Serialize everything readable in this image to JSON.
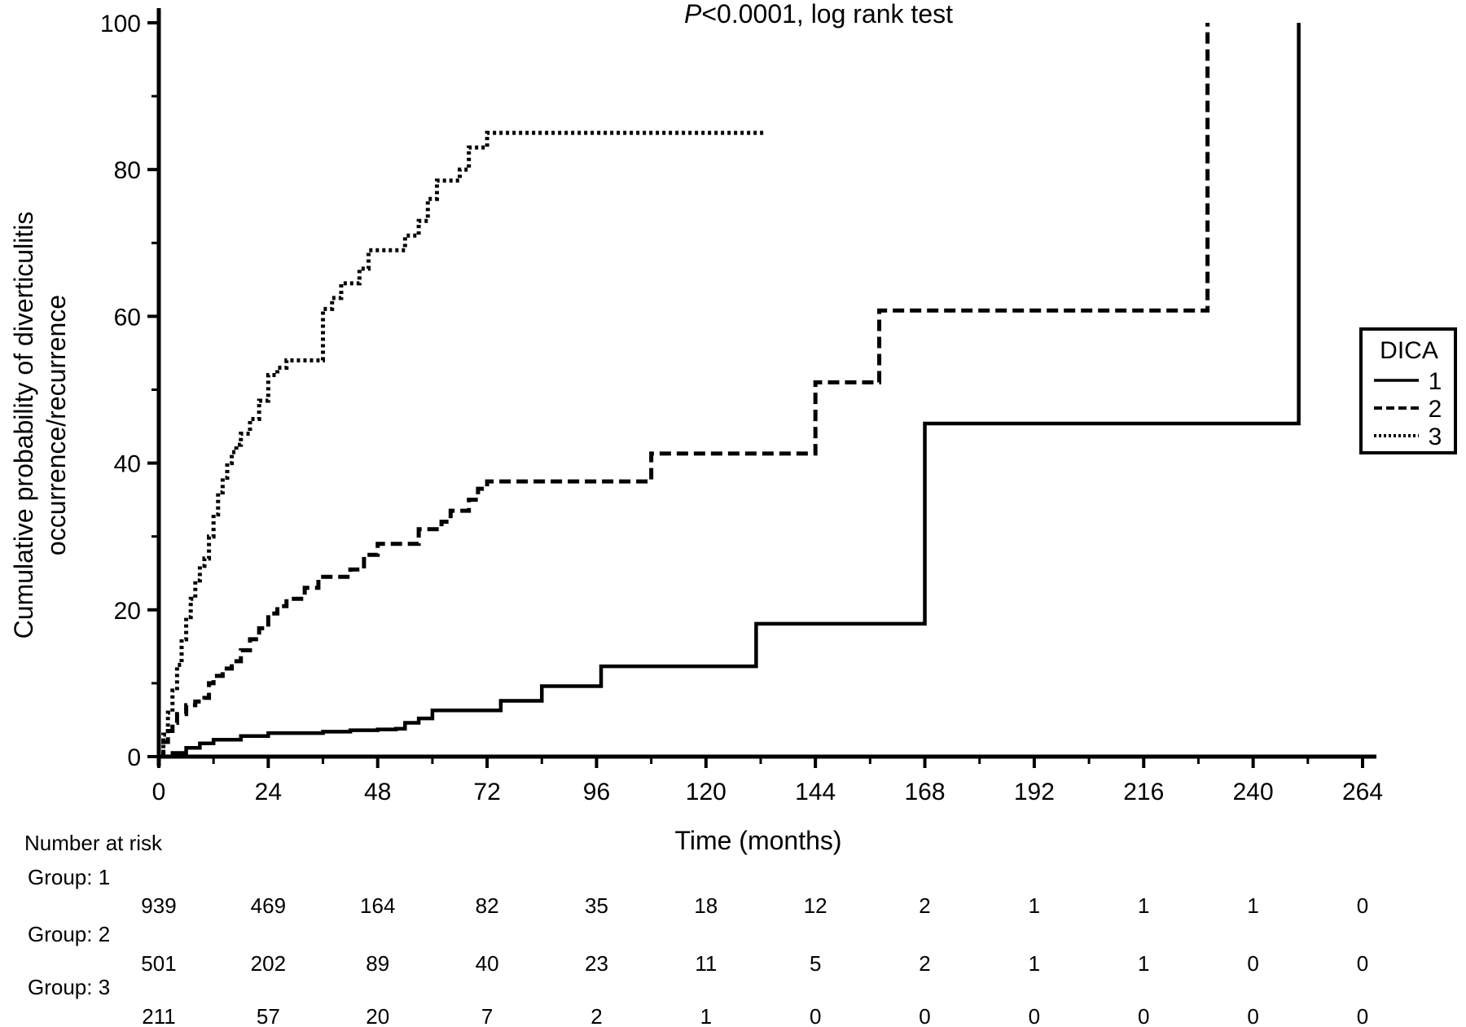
{
  "chart_data": {
    "type": "line",
    "annotation": "P<0.0001, log rank test",
    "annotation_italic": "P",
    "annotation_rest": "<0.0001, log rank test",
    "xlabel": "Time (months)",
    "ylabel_line1": "Cumulative probability of diverticulitis",
    "ylabel_line2": "occurrence/recurrence",
    "xlim": [
      0,
      264
    ],
    "ylim": [
      0,
      100
    ],
    "x_ticks": [
      "0",
      "24",
      "48",
      "72",
      "96",
      "120",
      "144",
      "168",
      "192",
      "216",
      "240",
      "264"
    ],
    "y_ticks": [
      "0",
      "20",
      "40",
      "60",
      "80",
      "100"
    ],
    "legend": {
      "title": "DICA",
      "placement": "right",
      "entries": [
        {
          "label": "1",
          "style": "solid"
        },
        {
          "label": "2",
          "style": "dashed"
        },
        {
          "label": "3",
          "style": "dotted"
        }
      ]
    },
    "series": [
      {
        "name": "1",
        "style": "solid",
        "points": [
          [
            0,
            0
          ],
          [
            3,
            0.5
          ],
          [
            6,
            1.2
          ],
          [
            9,
            1.8
          ],
          [
            12,
            2.3
          ],
          [
            18,
            2.8
          ],
          [
            24,
            3.2
          ],
          [
            36,
            3.4
          ],
          [
            42,
            3.6
          ],
          [
            48,
            3.7
          ],
          [
            52,
            3.8
          ],
          [
            54,
            4.6
          ],
          [
            57,
            5.2
          ],
          [
            60,
            6.3
          ],
          [
            66,
            6.3
          ],
          [
            72,
            6.3
          ],
          [
            75,
            7.6
          ],
          [
            81,
            7.6
          ],
          [
            84,
            9.6
          ],
          [
            90,
            9.6
          ],
          [
            97,
            12.3
          ],
          [
            105,
            12.3
          ],
          [
            131,
            18.1
          ],
          [
            150,
            18.1
          ],
          [
            168,
            45.4
          ],
          [
            230,
            45.4
          ],
          [
            250,
            45.4
          ],
          [
            250,
            100
          ]
        ]
      },
      {
        "name": "2",
        "style": "dashed",
        "points": [
          [
            0,
            0
          ],
          [
            1,
            2
          ],
          [
            2,
            3.5
          ],
          [
            3,
            4.6
          ],
          [
            4,
            5.8
          ],
          [
            6,
            7
          ],
          [
            8,
            7.5
          ],
          [
            10,
            8
          ],
          [
            11,
            10
          ],
          [
            12,
            11
          ],
          [
            14,
            12
          ],
          [
            16,
            13
          ],
          [
            18,
            14.5
          ],
          [
            20,
            16
          ],
          [
            22,
            17.5
          ],
          [
            24,
            19.5
          ],
          [
            26,
            20.5
          ],
          [
            28,
            21.5
          ],
          [
            32,
            23
          ],
          [
            35,
            24.5
          ],
          [
            40,
            24.5
          ],
          [
            42,
            25.5
          ],
          [
            45,
            27.5
          ],
          [
            48,
            29
          ],
          [
            52,
            29
          ],
          [
            54,
            29
          ],
          [
            57,
            31
          ],
          [
            60,
            31
          ],
          [
            62,
            32
          ],
          [
            64,
            33.5
          ],
          [
            66,
            33.5
          ],
          [
            68,
            35
          ],
          [
            70,
            36.5
          ],
          [
            72,
            37.5
          ],
          [
            90,
            37.5
          ],
          [
            108,
            37.5
          ],
          [
            108,
            41.3
          ],
          [
            144,
            41.3
          ],
          [
            144,
            51
          ],
          [
            158,
            51
          ],
          [
            158,
            60.8
          ],
          [
            230,
            60.8
          ],
          [
            230,
            100
          ]
        ]
      },
      {
        "name": "3",
        "style": "dotted",
        "points": [
          [
            0,
            0
          ],
          [
            1,
            3
          ],
          [
            2,
            6
          ],
          [
            3,
            9
          ],
          [
            4,
            12.5
          ],
          [
            5,
            16
          ],
          [
            6,
            19
          ],
          [
            7,
            21.5
          ],
          [
            8,
            24
          ],
          [
            9,
            26
          ],
          [
            10,
            27
          ],
          [
            11,
            30
          ],
          [
            12,
            33
          ],
          [
            13,
            36
          ],
          [
            14,
            38
          ],
          [
            15,
            40
          ],
          [
            16,
            41.5
          ],
          [
            17,
            42.5
          ],
          [
            18,
            44
          ],
          [
            20,
            46
          ],
          [
            22,
            48.5
          ],
          [
            24,
            52
          ],
          [
            26,
            53
          ],
          [
            28,
            54
          ],
          [
            35,
            54
          ],
          [
            36,
            61
          ],
          [
            38,
            62.5
          ],
          [
            40,
            64.5
          ],
          [
            44,
            66.5
          ],
          [
            46,
            69
          ],
          [
            52,
            69
          ],
          [
            54,
            71
          ],
          [
            57,
            73
          ],
          [
            59,
            76
          ],
          [
            61,
            78.5
          ],
          [
            65,
            78.5
          ],
          [
            66,
            80
          ],
          [
            68,
            83
          ],
          [
            72,
            85
          ],
          [
            133,
            85
          ]
        ]
      }
    ],
    "risk_table": {
      "title": "Number at risk",
      "times": [
        0,
        24,
        48,
        72,
        96,
        120,
        144,
        168,
        192,
        216,
        240,
        264
      ],
      "groups": [
        {
          "label": "Group: 1",
          "values": [
            "939",
            "469",
            "164",
            "82",
            "35",
            "18",
            "12",
            "2",
            "1",
            "1",
            "1",
            "0"
          ]
        },
        {
          "label": "Group: 2",
          "values": [
            "501",
            "202",
            "89",
            "40",
            "23",
            "11",
            "5",
            "2",
            "1",
            "1",
            "0",
            "0"
          ]
        },
        {
          "label": "Group: 3",
          "values": [
            "211",
            "57",
            "20",
            "7",
            "2",
            "1",
            "0",
            "0",
            "0",
            "0",
            "0",
            "0"
          ]
        }
      ]
    }
  }
}
